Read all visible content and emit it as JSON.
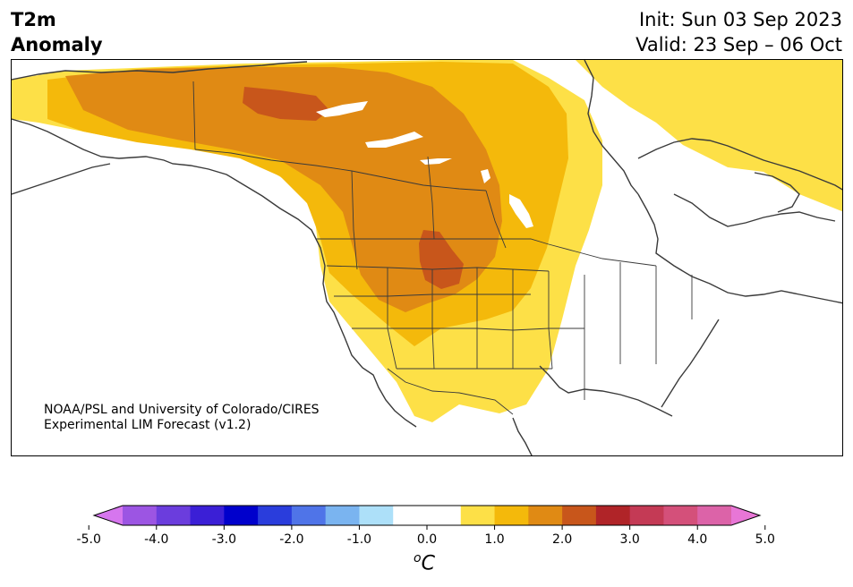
{
  "header": {
    "title_line1": "T2m",
    "title_line2": "Anomaly",
    "init": "Init: Sun 03 Sep 2023",
    "valid": "Valid: 23 Sep – 06 Oct"
  },
  "map": {
    "credit_line1": "NOAA/PSL and University of Colorado/CIRES",
    "credit_line2": "Experimental LIM Forecast (v1.2)",
    "level_colors": {
      "0.5": "#fde047",
      "1.0": "#f4b90b",
      "1.5": "#e08a14",
      "2.0": "#c8561b"
    }
  },
  "colorbar": {
    "unit_base": "C",
    "unit_sup": "o",
    "bins": [
      {
        "color": "#d676ee"
      },
      {
        "color": "#9c55e3"
      },
      {
        "color": "#6b3ddd"
      },
      {
        "color": "#3b1fd6"
      },
      {
        "color": "#0000cc"
      },
      {
        "color": "#2a3ddc"
      },
      {
        "color": "#4f74e8"
      },
      {
        "color": "#7ab4f0"
      },
      {
        "color": "#ade0f9"
      },
      {
        "color": "#ffffff"
      },
      {
        "color": "#ffffff"
      },
      {
        "color": "#fde047"
      },
      {
        "color": "#f4b90b"
      },
      {
        "color": "#e08a14"
      },
      {
        "color": "#c8561b"
      },
      {
        "color": "#b02428"
      },
      {
        "color": "#c43a55"
      },
      {
        "color": "#d4507a"
      },
      {
        "color": "#dc63a8"
      },
      {
        "color": "#e876d6"
      }
    ],
    "ticks": [
      "-5.0",
      "-4.0",
      "-3.0",
      "-2.0",
      "-1.0",
      "0.0",
      "1.0",
      "2.0",
      "3.0",
      "4.0",
      "5.0"
    ]
  }
}
